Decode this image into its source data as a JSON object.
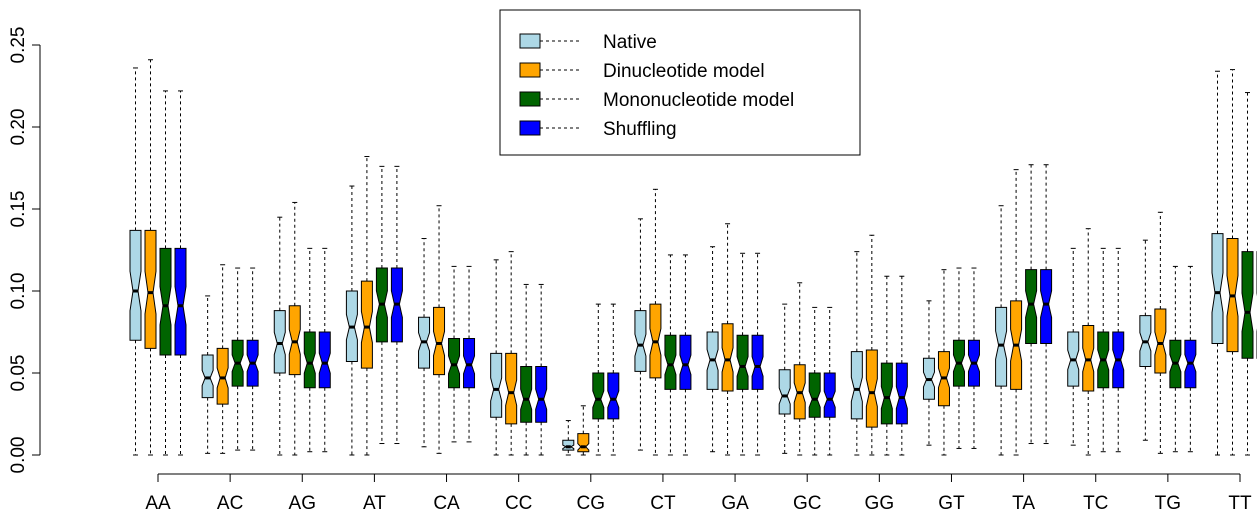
{
  "chart_data": {
    "type": "boxplot",
    "categories": [
      "AA",
      "AC",
      "AG",
      "AT",
      "CA",
      "CC",
      "CG",
      "CT",
      "GA",
      "GC",
      "GG",
      "GT",
      "TA",
      "TC",
      "TG",
      "TT"
    ],
    "ylim": [
      0,
      0.25
    ],
    "yticks": [
      {
        "value": 0,
        "label": "0.00"
      },
      {
        "value": 0.05,
        "label": "0.05"
      },
      {
        "value": 0.1,
        "label": "0.10"
      },
      {
        "value": 0.15,
        "label": "0.15"
      },
      {
        "value": 0.2,
        "label": "0.20"
      },
      {
        "value": 0.25,
        "label": "0.25"
      }
    ],
    "legend": "top-center",
    "series": [
      {
        "name": "Native",
        "color": "#add8e6",
        "values": [
          [
            0,
            0.07,
            0.1,
            0.137,
            0.236
          ],
          [
            0.001,
            0.035,
            0.047,
            0.061,
            0.097
          ],
          [
            0,
            0.05,
            0.068,
            0.088,
            0.145
          ],
          [
            0,
            0.057,
            0.078,
            0.1,
            0.164
          ],
          [
            0.005,
            0.053,
            0.069,
            0.084,
            0.132
          ],
          [
            0,
            0.023,
            0.04,
            0.062,
            0.119
          ],
          [
            0,
            0.003,
            0.005,
            0.009,
            0.021
          ],
          [
            0.003,
            0.051,
            0.067,
            0.088,
            0.144
          ],
          [
            0.002,
            0.04,
            0.058,
            0.075,
            0.127
          ],
          [
            0.001,
            0.025,
            0.036,
            0.052,
            0.092
          ],
          [
            0,
            0.022,
            0.04,
            0.063,
            0.124
          ],
          [
            0.006,
            0.034,
            0.046,
            0.059,
            0.094
          ],
          [
            0,
            0.042,
            0.067,
            0.09,
            0.152
          ],
          [
            0.006,
            0.042,
            0.058,
            0.075,
            0.126
          ],
          [
            0.009,
            0.054,
            0.069,
            0.085,
            0.131
          ],
          [
            0,
            0.068,
            0.099,
            0.135,
            0.234
          ]
        ]
      },
      {
        "name": "Dinucleotide model",
        "color": "#ffa500",
        "values": [
          [
            0,
            0.065,
            0.099,
            0.137,
            0.241
          ],
          [
            0.001,
            0.031,
            0.047,
            0.065,
            0.116
          ],
          [
            0,
            0.049,
            0.069,
            0.091,
            0.154
          ],
          [
            0,
            0.053,
            0.078,
            0.106,
            0.182
          ],
          [
            0.001,
            0.049,
            0.068,
            0.09,
            0.152
          ],
          [
            0,
            0.019,
            0.038,
            0.062,
            0.124
          ],
          [
            0,
            0.002,
            0.005,
            0.013,
            0.03
          ],
          [
            0,
            0.047,
            0.069,
            0.092,
            0.162
          ],
          [
            0,
            0.039,
            0.058,
            0.08,
            0.141
          ],
          [
            0,
            0.022,
            0.038,
            0.055,
            0.105
          ],
          [
            0,
            0.017,
            0.038,
            0.064,
            0.134
          ],
          [
            0,
            0.03,
            0.047,
            0.063,
            0.113
          ],
          [
            0,
            0.04,
            0.067,
            0.094,
            0.174
          ],
          [
            0,
            0.039,
            0.058,
            0.079,
            0.138
          ],
          [
            0.001,
            0.05,
            0.068,
            0.089,
            0.148
          ],
          [
            0,
            0.063,
            0.097,
            0.132,
            0.235
          ]
        ]
      },
      {
        "name": "Mononucleotide model",
        "color": "#006400",
        "values": [
          [
            0,
            0.061,
            0.091,
            0.126,
            0.222
          ],
          [
            0.003,
            0.042,
            0.056,
            0.07,
            0.114
          ],
          [
            0.002,
            0.041,
            0.056,
            0.075,
            0.126
          ],
          [
            0.007,
            0.069,
            0.092,
            0.114,
            0.176
          ],
          [
            0.008,
            0.041,
            0.055,
            0.071,
            0.115
          ],
          [
            0,
            0.02,
            0.034,
            0.054,
            0.104
          ],
          [
            0,
            0.022,
            0.034,
            0.05,
            0.092
          ],
          [
            0,
            0.04,
            0.055,
            0.073,
            0.122
          ],
          [
            0,
            0.04,
            0.054,
            0.073,
            0.123
          ],
          [
            0,
            0.023,
            0.034,
            0.05,
            0.09
          ],
          [
            0,
            0.019,
            0.035,
            0.056,
            0.109
          ],
          [
            0.004,
            0.042,
            0.056,
            0.07,
            0.114
          ],
          [
            0.007,
            0.068,
            0.092,
            0.113,
            0.177
          ],
          [
            0.002,
            0.041,
            0.058,
            0.075,
            0.126
          ],
          [
            0.002,
            0.041,
            0.056,
            0.07,
            0.115
          ],
          [
            0,
            0.059,
            0.087,
            0.124,
            0.221
          ]
        ]
      },
      {
        "name": "Shuffling",
        "color": "#0000ff",
        "values": [
          [
            0,
            0.061,
            0.091,
            0.126,
            0.222
          ],
          [
            0.003,
            0.042,
            0.056,
            0.07,
            0.114
          ],
          [
            0.002,
            0.041,
            0.056,
            0.075,
            0.126
          ],
          [
            0.007,
            0.069,
            0.092,
            0.114,
            0.176
          ],
          [
            0.008,
            0.041,
            0.055,
            0.071,
            0.115
          ],
          [
            0,
            0.02,
            0.034,
            0.054,
            0.104
          ],
          [
            0,
            0.022,
            0.034,
            0.05,
            0.092
          ],
          [
            0,
            0.04,
            0.055,
            0.073,
            0.122
          ],
          [
            0,
            0.04,
            0.054,
            0.073,
            0.123
          ],
          [
            0,
            0.023,
            0.034,
            0.05,
            0.09
          ],
          [
            0,
            0.019,
            0.035,
            0.056,
            0.109
          ],
          [
            0.004,
            0.042,
            0.056,
            0.07,
            0.114
          ],
          [
            0.007,
            0.068,
            0.092,
            0.113,
            0.177
          ],
          [
            0.002,
            0.041,
            0.058,
            0.075,
            0.126
          ],
          [
            0.002,
            0.041,
            0.056,
            0.07,
            0.115
          ],
          [
            0,
            0.059,
            0.087,
            0.124,
            0.221
          ]
        ]
      }
    ]
  }
}
